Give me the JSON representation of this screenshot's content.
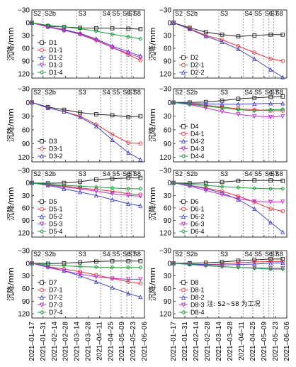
{
  "figure": {
    "ylabel": "沉降/mm",
    "note": "注: S2~S8 为工况",
    "x_ticks": [
      "2021–01–17",
      "2021–01–31",
      "2021–02–14",
      "2021–02–28",
      "2021–03–14",
      "2021–03–28",
      "2021–04–11",
      "2021–04–25",
      "2021–05–09",
      "2021–05–23",
      "2021–06–06"
    ],
    "stages": [
      {
        "label": "S2",
        "x": 0
      },
      {
        "label": "S2b",
        "x": 14
      },
      {
        "label": "S3",
        "x": 56
      },
      {
        "label": "S4",
        "x": 86
      },
      {
        "label": "S5",
        "x": 98
      },
      {
        "label": "S6",
        "x": 111
      },
      {
        "label": "S7",
        "x": 118
      },
      {
        "label": "S8",
        "x": 124
      }
    ],
    "colors": {
      "s0": "#222222",
      "s1": "#e8333a",
      "s2": "#4646c8",
      "s3": "#c030c8",
      "s4": "#1a9e3a"
    },
    "markers": [
      "square",
      "circle",
      "triangle",
      "triangle-down",
      "diamond"
    ]
  },
  "chart_data": [
    {
      "type": "line",
      "panel": "D1",
      "x_unit": "days since 2021-01-17",
      "ylim": [
        -30,
        130
      ],
      "yticks": [
        -30,
        0,
        30,
        60,
        90,
        120
      ],
      "yinverted": true,
      "grid": false,
      "legend": "left",
      "series": [
        {
          "name": "D1",
          "x": [
            0,
            20,
            40,
            60,
            80,
            100,
            120,
            135
          ],
          "y": [
            0,
            8,
            10,
            12,
            13,
            13,
            14,
            15
          ]
        },
        {
          "name": "D1-1",
          "x": [
            0,
            20,
            40,
            60,
            80,
            100,
            120,
            135
          ],
          "y": [
            0,
            10,
            18,
            26,
            40,
            58,
            75,
            88
          ]
        },
        {
          "name": "D1-2",
          "x": [
            0,
            20,
            40,
            60,
            80,
            100,
            120,
            135
          ],
          "y": [
            0,
            9,
            16,
            25,
            38,
            55,
            68,
            78
          ]
        },
        {
          "name": "D1-3",
          "x": [
            0,
            20,
            40,
            60,
            80,
            100,
            120,
            135
          ],
          "y": [
            0,
            10,
            17,
            28,
            42,
            58,
            72,
            82
          ]
        },
        {
          "name": "D1-4",
          "x": [
            0,
            20,
            40,
            60,
            80,
            100,
            120,
            135
          ],
          "y": [
            0,
            6,
            10,
            14,
            20,
            27,
            33,
            38
          ]
        }
      ]
    },
    {
      "type": "line",
      "panel": "D2",
      "x_unit": "days since 2021-01-17",
      "ylim": [
        -30,
        130
      ],
      "yticks": [
        -30,
        0,
        30,
        60,
        90,
        120
      ],
      "yinverted": true,
      "grid": false,
      "legend": "left",
      "series": [
        {
          "name": "D2",
          "x": [
            0,
            20,
            40,
            60,
            80,
            100,
            120,
            135
          ],
          "y": [
            0,
            12,
            22,
            28,
            32,
            30,
            28,
            28
          ]
        },
        {
          "name": "D2-1",
          "x": [
            0,
            20,
            40,
            60,
            80,
            100,
            120,
            135
          ],
          "y": [
            0,
            14,
            30,
            40,
            55,
            70,
            85,
            90
          ]
        },
        {
          "name": "D2-2",
          "x": [
            0,
            20,
            40,
            60,
            80,
            100,
            120,
            135
          ],
          "y": [
            0,
            15,
            32,
            45,
            62,
            85,
            110,
            128
          ]
        }
      ]
    },
    {
      "type": "line",
      "panel": "D3",
      "x_unit": "days since 2021-01-17",
      "ylim": [
        -30,
        130
      ],
      "yticks": [
        -30,
        0,
        30,
        60,
        90,
        120
      ],
      "yinverted": true,
      "grid": false,
      "legend": "left",
      "series": [
        {
          "name": "D3",
          "x": [
            0,
            20,
            40,
            60,
            80,
            100,
            120,
            135
          ],
          "y": [
            0,
            10,
            16,
            22,
            26,
            28,
            32,
            30
          ]
        },
        {
          "name": "D3-1",
          "x": [
            0,
            20,
            40,
            60,
            80,
            100,
            120,
            135
          ],
          "y": [
            0,
            12,
            20,
            30,
            48,
            70,
            88,
            90
          ]
        },
        {
          "name": "D3-2",
          "x": [
            0,
            20,
            40,
            60,
            80,
            100,
            120,
            135
          ],
          "y": [
            0,
            12,
            20,
            32,
            52,
            82,
            110,
            125
          ]
        }
      ]
    },
    {
      "type": "line",
      "panel": "D4",
      "x_unit": "days since 2021-01-17",
      "ylim": [
        -30,
        130
      ],
      "yticks": [
        -30,
        0,
        30,
        60,
        90,
        120
      ],
      "yinverted": true,
      "grid": false,
      "legend": "left",
      "series": [
        {
          "name": "D4",
          "x": [
            0,
            20,
            40,
            60,
            80,
            100,
            120,
            135
          ],
          "y": [
            0,
            0,
            -1,
            -4,
            -8,
            -10,
            -12,
            -13
          ]
        },
        {
          "name": "D4-1",
          "x": [
            0,
            20,
            40,
            60,
            80,
            100,
            120,
            135
          ],
          "y": [
            0,
            3,
            6,
            10,
            14,
            16,
            18,
            18
          ]
        },
        {
          "name": "D4-2",
          "x": [
            0,
            20,
            40,
            60,
            80,
            100,
            120,
            135
          ],
          "y": [
            0,
            2,
            3,
            4,
            4,
            3,
            2,
            2
          ]
        },
        {
          "name": "D4-3",
          "x": [
            0,
            20,
            40,
            60,
            80,
            100,
            120,
            135
          ],
          "y": [
            0,
            5,
            12,
            20,
            26,
            30,
            32,
            30
          ]
        },
        {
          "name": "D4-4",
          "x": [
            0,
            20,
            40,
            60,
            80,
            100,
            120,
            135
          ],
          "y": [
            0,
            4,
            8,
            12,
            16,
            18,
            16,
            15
          ]
        }
      ]
    },
    {
      "type": "line",
      "panel": "D5",
      "x_unit": "days since 2021-01-17",
      "ylim": [
        -30,
        130
      ],
      "yticks": [
        -30,
        0,
        30,
        60,
        90,
        120
      ],
      "yinverted": true,
      "grid": false,
      "legend": "left",
      "series": [
        {
          "name": "D5",
          "x": [
            0,
            20,
            40,
            60,
            80,
            100,
            120,
            135
          ],
          "y": [
            0,
            1,
            0,
            -3,
            -8,
            -10,
            -12,
            -12
          ]
        },
        {
          "name": "D5-1",
          "x": [
            0,
            20,
            40,
            60,
            80,
            100,
            120,
            135
          ],
          "y": [
            0,
            4,
            8,
            12,
            16,
            20,
            26,
            28
          ]
        },
        {
          "name": "D5-2",
          "x": [
            0,
            20,
            40,
            60,
            80,
            100,
            120,
            135
          ],
          "y": [
            0,
            6,
            14,
            22,
            30,
            40,
            50,
            55
          ]
        },
        {
          "name": "D5-3",
          "x": [
            0,
            20,
            40,
            60,
            80,
            100,
            120,
            135
          ],
          "y": [
            0,
            5,
            10,
            14,
            20,
            26,
            30,
            32
          ]
        },
        {
          "name": "D5-4",
          "x": [
            0,
            20,
            40,
            60,
            80,
            100,
            120,
            135
          ],
          "y": [
            0,
            3,
            6,
            8,
            10,
            12,
            14,
            14
          ]
        }
      ]
    },
    {
      "type": "line",
      "panel": "D6",
      "x_unit": "days since 2021-01-17",
      "ylim": [
        -30,
        130
      ],
      "yticks": [
        -30,
        0,
        30,
        60,
        90,
        120
      ],
      "yinverted": true,
      "grid": false,
      "legend": "left",
      "series": [
        {
          "name": "D6",
          "x": [
            0,
            20,
            40,
            60,
            80,
            100,
            120,
            135
          ],
          "y": [
            0,
            1,
            0,
            -2,
            -5,
            -6,
            -6,
            -5
          ]
        },
        {
          "name": "D6-1",
          "x": [
            0,
            20,
            40,
            60,
            80,
            100,
            120,
            135
          ],
          "y": [
            0,
            6,
            12,
            20,
            32,
            46,
            62,
            68
          ]
        },
        {
          "name": "D6-2",
          "x": [
            0,
            20,
            40,
            60,
            80,
            100,
            120,
            135
          ],
          "y": [
            0,
            6,
            14,
            24,
            40,
            62,
            95,
            118
          ]
        },
        {
          "name": "D6-3",
          "x": [
            0,
            20,
            40,
            60,
            80,
            100,
            120,
            135
          ],
          "y": [
            0,
            8,
            18,
            28,
            38,
            44,
            46,
            45
          ]
        },
        {
          "name": "D6-4",
          "x": [
            0,
            20,
            40,
            60,
            80,
            100,
            120,
            135
          ],
          "y": [
            0,
            3,
            6,
            9,
            11,
            13,
            14,
            14
          ]
        }
      ]
    },
    {
      "type": "line",
      "panel": "D7",
      "x_unit": "days since 2021-01-17",
      "ylim": [
        -30,
        130
      ],
      "yticks": [
        -30,
        0,
        30,
        60,
        90,
        120
      ],
      "yinverted": true,
      "grid": false,
      "legend": "left",
      "series": [
        {
          "name": "D7",
          "x": [
            0,
            20,
            40,
            60,
            80,
            100,
            120,
            135
          ],
          "y": [
            0,
            1,
            0,
            -2,
            -4,
            -5,
            -5,
            -5
          ]
        },
        {
          "name": "D7-1",
          "x": [
            0,
            20,
            40,
            60,
            80,
            100,
            120,
            135
          ],
          "y": [
            0,
            8,
            14,
            20,
            28,
            36,
            44,
            48
          ]
        },
        {
          "name": "D7-2",
          "x": [
            0,
            20,
            40,
            60,
            80,
            100,
            120,
            135
          ],
          "y": [
            0,
            8,
            18,
            30,
            44,
            58,
            72,
            80
          ]
        },
        {
          "name": "D7-3",
          "x": [
            0,
            20,
            40,
            60,
            80,
            100,
            120,
            135
          ],
          "y": [
            0,
            10,
            18,
            26,
            32,
            36,
            38,
            38
          ]
        },
        {
          "name": "D7-4",
          "x": [
            0,
            20,
            40,
            60,
            80,
            100,
            120,
            135
          ],
          "y": [
            0,
            4,
            6,
            8,
            9,
            10,
            10,
            10
          ]
        }
      ]
    },
    {
      "type": "line",
      "panel": "D8",
      "x_unit": "days since 2021-01-17",
      "ylim": [
        -30,
        130
      ],
      "yticks": [
        -30,
        0,
        30,
        60,
        90,
        120
      ],
      "yinverted": true,
      "grid": false,
      "legend": "left",
      "series": [
        {
          "name": "D8",
          "x": [
            0,
            20,
            40,
            60,
            80,
            100,
            120,
            135
          ],
          "y": [
            0,
            0,
            -1,
            -3,
            -6,
            -8,
            -10,
            -10
          ]
        },
        {
          "name": "D8-1",
          "x": [
            0,
            20,
            40,
            60,
            80,
            100,
            120,
            135
          ],
          "y": [
            0,
            2,
            3,
            2,
            -1,
            -3,
            -4,
            -4
          ]
        },
        {
          "name": "D8-2",
          "x": [
            0,
            20,
            40,
            60,
            80,
            100,
            120,
            135
          ],
          "y": [
            0,
            2,
            3,
            4,
            3,
            2,
            0,
            -1
          ]
        },
        {
          "name": "D8-3",
          "x": [
            0,
            20,
            40,
            60,
            80,
            100,
            120,
            135
          ],
          "y": [
            0,
            3,
            6,
            8,
            10,
            11,
            12,
            12
          ]
        },
        {
          "name": "D8-4",
          "x": [
            0,
            20,
            40,
            60,
            80,
            100,
            120,
            135
          ],
          "y": [
            0,
            3,
            5,
            8,
            10,
            12,
            14,
            14
          ]
        }
      ]
    }
  ]
}
